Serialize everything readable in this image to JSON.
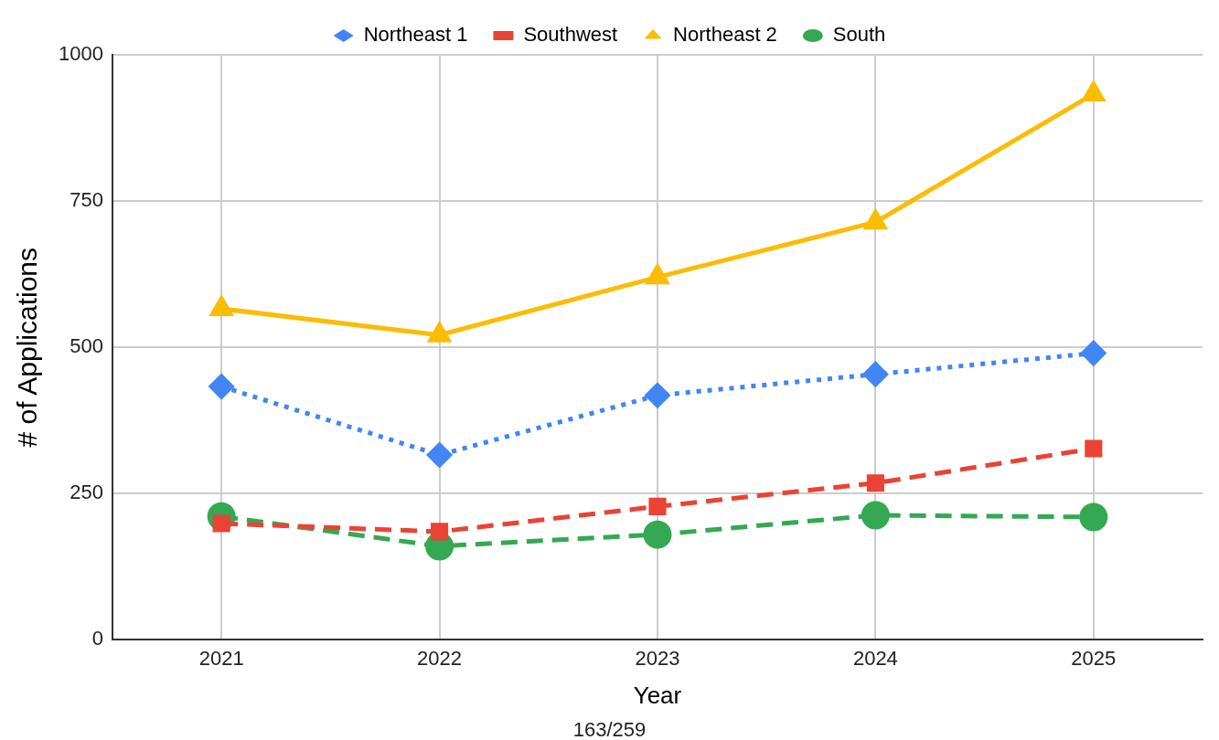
{
  "chart_data": {
    "type": "line",
    "xlabel": "Year",
    "ylabel": "# of Applications",
    "categories": [
      "2021",
      "2022",
      "2023",
      "2024",
      "2025"
    ],
    "series": [
      {
        "name": "Northeast 1",
        "color": "#4285f4",
        "marker": "diamond",
        "line_style": "dotted",
        "values": [
          433,
          316,
          418,
          454,
          490
        ]
      },
      {
        "name": "Southwest",
        "color": "#ea4335",
        "marker": "square",
        "line_style": "dashed",
        "values": [
          199,
          185,
          228,
          268,
          327
        ]
      },
      {
        "name": "Northeast 2",
        "color": "#fbbc04",
        "marker": "triangle",
        "line_style": "solid",
        "values": [
          566,
          521,
          620,
          714,
          933
        ]
      },
      {
        "name": "South",
        "color": "#34a853",
        "marker": "circle",
        "line_style": "dashed",
        "values": [
          211,
          160,
          180,
          213,
          210
        ]
      }
    ],
    "ylim": [
      0,
      1000
    ],
    "yticks": [
      0,
      250,
      500,
      750,
      1000
    ],
    "grid": true,
    "legend": "top",
    "annotations": [
      "163/259"
    ]
  }
}
